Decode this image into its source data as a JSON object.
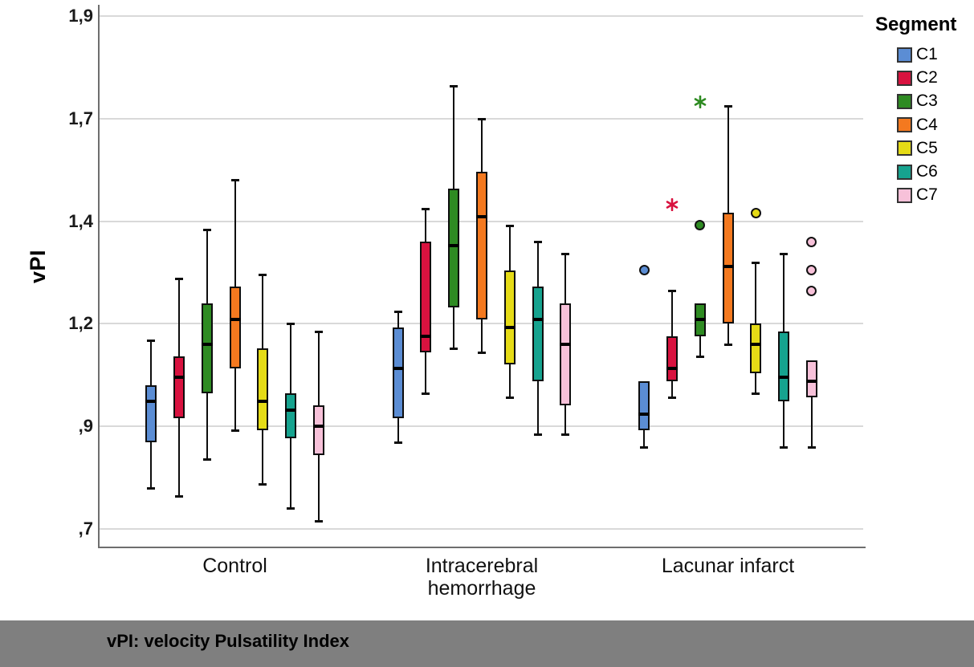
{
  "y_axis": {
    "title": "vPI"
  },
  "legend": {
    "title": "Segment"
  },
  "caption": {
    "text": "vPI: velocity Pulsatility Index"
  },
  "colors": {
    "caption_bar_bg": "#7f7f7f",
    "gridline": "#d9d9d9",
    "axis_line": "#6e6e6e",
    "box_border": "#0d0d0d"
  },
  "chart_data": {
    "type": "box",
    "title": "",
    "ylabel": "vPI",
    "xlabel": "",
    "grid": true,
    "legend_position": "top-right",
    "ylim": [
      0.62,
      1.95
    ],
    "y_ticks": [
      {
        "label": "1,9",
        "value": 1.9
      },
      {
        "label": "1,7",
        "value": 1.65
      },
      {
        "label": "1,4",
        "value": 1.4
      },
      {
        "label": "1,2",
        "value": 1.15
      },
      {
        "label": ",9",
        "value": 0.9
      },
      {
        "label": ",7",
        "value": 0.65
      }
    ],
    "groups": [
      {
        "name": "Control",
        "label_lines": [
          "Control"
        ]
      },
      {
        "name": "Intracerebral hemorrhage",
        "label_lines": [
          "Intracerebral",
          "hemorrhage"
        ]
      },
      {
        "name": "Lacunar infarct",
        "label_lines": [
          "Lacunar infarct"
        ]
      }
    ],
    "segments": [
      {
        "name": "C1",
        "color": "#5b8dd4"
      },
      {
        "name": "C2",
        "color": "#d8123f"
      },
      {
        "name": "C3",
        "color": "#2e8b22"
      },
      {
        "name": "C4",
        "color": "#f4791f"
      },
      {
        "name": "C5",
        "color": "#e5db16"
      },
      {
        "name": "C6",
        "color": "#16a38f"
      },
      {
        "name": "C7",
        "color": "#f7c1d9"
      }
    ],
    "boxes": [
      {
        "group": "Control",
        "segment": "C1",
        "low": 0.75,
        "q1": 0.86,
        "median": 0.96,
        "q3": 1.0,
        "high": 1.11,
        "outliers": [],
        "extremes": []
      },
      {
        "group": "Control",
        "segment": "C2",
        "low": 0.73,
        "q1": 0.92,
        "median": 1.02,
        "q3": 1.07,
        "high": 1.26,
        "outliers": [],
        "extremes": []
      },
      {
        "group": "Control",
        "segment": "C3",
        "low": 0.82,
        "q1": 0.98,
        "median": 1.1,
        "q3": 1.2,
        "high": 1.38,
        "outliers": [],
        "extremes": []
      },
      {
        "group": "Control",
        "segment": "C4",
        "low": 0.89,
        "q1": 1.04,
        "median": 1.16,
        "q3": 1.24,
        "high": 1.5,
        "outliers": [],
        "extremes": []
      },
      {
        "group": "Control",
        "segment": "C5",
        "low": 0.76,
        "q1": 0.89,
        "median": 0.96,
        "q3": 1.09,
        "high": 1.27,
        "outliers": [],
        "extremes": []
      },
      {
        "group": "Control",
        "segment": "C6",
        "low": 0.7,
        "q1": 0.87,
        "median": 0.94,
        "q3": 0.98,
        "high": 1.15,
        "outliers": [],
        "extremes": []
      },
      {
        "group": "Control",
        "segment": "C7",
        "low": 0.67,
        "q1": 0.83,
        "median": 0.9,
        "q3": 0.95,
        "high": 1.13,
        "outliers": [],
        "extremes": []
      },
      {
        "group": "Intracerebral hemorrhage",
        "segment": "C1",
        "low": 0.86,
        "q1": 0.92,
        "median": 1.04,
        "q3": 1.14,
        "high": 1.18,
        "outliers": [],
        "extremes": []
      },
      {
        "group": "Intracerebral hemorrhage",
        "segment": "C2",
        "low": 0.98,
        "q1": 1.08,
        "median": 1.12,
        "q3": 1.35,
        "high": 1.43,
        "outliers": [],
        "extremes": []
      },
      {
        "group": "Intracerebral hemorrhage",
        "segment": "C3",
        "low": 1.09,
        "q1": 1.19,
        "median": 1.34,
        "q3": 1.48,
        "high": 1.73,
        "outliers": [],
        "extremes": []
      },
      {
        "group": "Intracerebral hemorrhage",
        "segment": "C4",
        "low": 1.08,
        "q1": 1.16,
        "median": 1.41,
        "q3": 1.52,
        "high": 1.65,
        "outliers": [],
        "extremes": []
      },
      {
        "group": "Intracerebral hemorrhage",
        "segment": "C5",
        "low": 0.97,
        "q1": 1.05,
        "median": 1.14,
        "q3": 1.28,
        "high": 1.39,
        "outliers": [],
        "extremes": []
      },
      {
        "group": "Intracerebral hemorrhage",
        "segment": "C6",
        "low": 0.88,
        "q1": 1.01,
        "median": 1.16,
        "q3": 1.24,
        "high": 1.35,
        "outliers": [],
        "extremes": []
      },
      {
        "group": "Intracerebral hemorrhage",
        "segment": "C7",
        "low": 0.88,
        "q1": 0.95,
        "median": 1.1,
        "q3": 1.2,
        "high": 1.32,
        "outliers": [],
        "extremes": []
      },
      {
        "group": "Lacunar infarct",
        "segment": "C1",
        "low": 0.85,
        "q1": 0.89,
        "median": 0.93,
        "q3": 1.01,
        "high": 1.01,
        "outliers": [
          1.28
        ],
        "extremes": []
      },
      {
        "group": "Lacunar infarct",
        "segment": "C2",
        "low": 0.97,
        "q1": 1.01,
        "median": 1.04,
        "q3": 1.12,
        "high": 1.23,
        "outliers": [],
        "extremes": [
          1.44
        ]
      },
      {
        "group": "Lacunar infarct",
        "segment": "C3",
        "low": 1.07,
        "q1": 1.12,
        "median": 1.16,
        "q3": 1.2,
        "high": 1.2,
        "outliers": [
          1.39
        ],
        "extremes": [
          1.69
        ]
      },
      {
        "group": "Lacunar infarct",
        "segment": "C4",
        "low": 1.1,
        "q1": 1.15,
        "median": 1.29,
        "q3": 1.42,
        "high": 1.68,
        "outliers": [],
        "extremes": []
      },
      {
        "group": "Lacunar infarct",
        "segment": "C5",
        "low": 0.98,
        "q1": 1.03,
        "median": 1.1,
        "q3": 1.15,
        "high": 1.3,
        "outliers": [
          1.42
        ],
        "extremes": []
      },
      {
        "group": "Lacunar infarct",
        "segment": "C6",
        "low": 0.85,
        "q1": 0.96,
        "median": 1.02,
        "q3": 1.13,
        "high": 1.32,
        "outliers": [],
        "extremes": []
      },
      {
        "group": "Lacunar infarct",
        "segment": "C7",
        "low": 0.85,
        "q1": 0.97,
        "median": 1.01,
        "q3": 1.06,
        "high": 1.06,
        "outliers": [
          1.23,
          1.28,
          1.35
        ],
        "extremes": []
      }
    ]
  }
}
